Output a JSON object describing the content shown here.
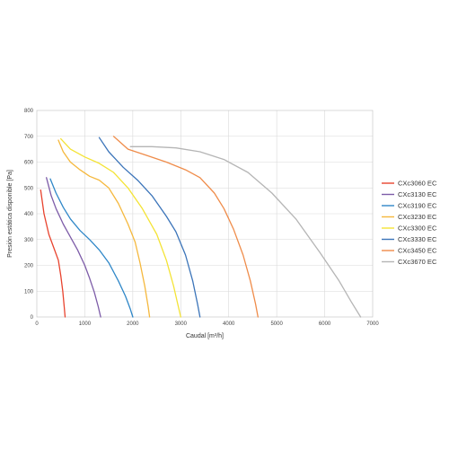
{
  "chart_data": {
    "type": "line",
    "title": "",
    "xlabel": "Caudal [m³/h]",
    "ylabel": "Presión estática disponible [Pa]",
    "xlim": [
      0,
      7000
    ],
    "ylim": [
      0,
      800
    ],
    "xticks": [
      0,
      1000,
      2000,
      3000,
      4000,
      5000,
      6000,
      7000
    ],
    "yticks": [
      0,
      100,
      200,
      300,
      400,
      500,
      600,
      700,
      800
    ],
    "grid": true,
    "legend_position": "right",
    "series": [
      {
        "name": "CXc3060 EC",
        "color": "#e8432e",
        "x": [
          80,
          150,
          250,
          350,
          450,
          500,
          540,
          570,
          590
        ],
        "y": [
          492,
          400,
          320,
          270,
          220,
          160,
          100,
          40,
          0
        ]
      },
      {
        "name": "CXc3130 EC",
        "color": "#7d5ca8",
        "x": [
          200,
          300,
          400,
          550,
          700,
          850,
          1000,
          1100,
          1200,
          1280,
          1330
        ],
        "y": [
          540,
          470,
          420,
          360,
          310,
          260,
          200,
          150,
          95,
          40,
          0
        ]
      },
      {
        "name": "CXc3190 EC",
        "color": "#2f87c8",
        "x": [
          280,
          400,
          550,
          700,
          900,
          1100,
          1300,
          1500,
          1700,
          1850,
          1950,
          2000
        ],
        "y": [
          535,
          480,
          425,
          380,
          335,
          300,
          260,
          210,
          140,
          80,
          30,
          0
        ]
      },
      {
        "name": "CXc3230 EC",
        "color": "#f5b83d",
        "x": [
          450,
          550,
          700,
          900,
          1100,
          1300,
          1500,
          1700,
          1900,
          2050,
          2150,
          2250,
          2320,
          2350
        ],
        "y": [
          685,
          640,
          600,
          570,
          545,
          530,
          500,
          440,
          360,
          290,
          210,
          120,
          40,
          0
        ]
      },
      {
        "name": "CXc3300 EC",
        "color": "#f4e335",
        "x": [
          500,
          700,
          1000,
          1300,
          1600,
          1900,
          2200,
          2500,
          2700,
          2850,
          2950,
          3000
        ],
        "y": [
          690,
          650,
          620,
          595,
          560,
          500,
          420,
          320,
          220,
          120,
          40,
          0
        ]
      },
      {
        "name": "CXc3330 EC",
        "color": "#3b74b9",
        "x": [
          1300,
          1500,
          1800,
          2100,
          2400,
          2700,
          2900,
          3100,
          3250,
          3350,
          3400
        ],
        "y": [
          695,
          640,
          580,
          530,
          470,
          390,
          330,
          240,
          140,
          50,
          0
        ]
      },
      {
        "name": "CXc3450 EC",
        "color": "#ef8c4a",
        "x": [
          1600,
          1900,
          2300,
          2700,
          3100,
          3400,
          3700,
          3900,
          4100,
          4300,
          4450,
          4560,
          4610
        ],
        "y": [
          700,
          650,
          625,
          600,
          570,
          540,
          480,
          420,
          340,
          240,
          140,
          50,
          0
        ]
      },
      {
        "name": "CXc3670 EC",
        "color": "#b5b5b5",
        "x": [
          1950,
          2400,
          2900,
          3400,
          3900,
          4400,
          4900,
          5400,
          5900,
          6300,
          6550,
          6750
        ],
        "y": [
          660,
          660,
          655,
          640,
          610,
          560,
          480,
          380,
          250,
          140,
          60,
          0
        ]
      }
    ]
  }
}
